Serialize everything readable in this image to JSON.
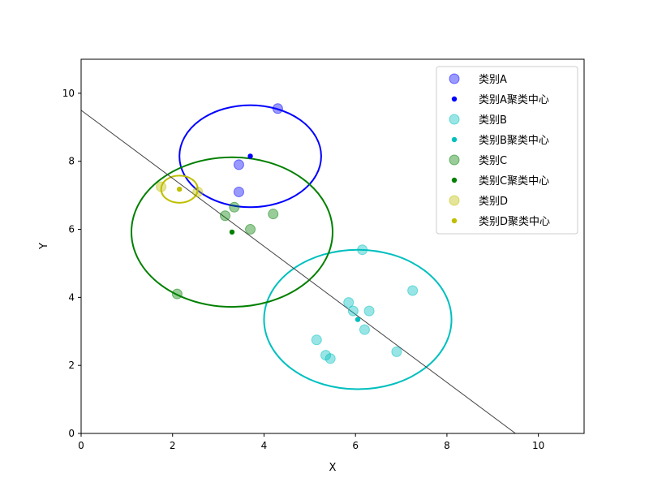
{
  "chart_data": {
    "type": "scatter",
    "xlabel": "X",
    "ylabel": "Y",
    "xlim": [
      0,
      11
    ],
    "ylim": [
      0,
      11
    ],
    "xticks": [
      "0",
      "2",
      "4",
      "6",
      "8",
      "10"
    ],
    "yticks": [
      "0",
      "2",
      "4",
      "6",
      "8",
      "10"
    ],
    "grid": false,
    "legend_position": "top-right",
    "series": [
      {
        "name": "类别A",
        "color": "#0000ff",
        "points": [
          [
            3.45,
            7.9
          ],
          [
            3.45,
            7.1
          ],
          [
            4.3,
            9.55
          ]
        ],
        "center": [
          3.7,
          8.15
        ],
        "center_label": "类别A聚类中心",
        "ellipse": {
          "rx": 1.55,
          "ry": 1.5
        }
      },
      {
        "name": "类别B",
        "color": "#00bfbf",
        "points": [
          [
            6.15,
            5.4
          ],
          [
            7.25,
            4.2
          ],
          [
            5.85,
            3.85
          ],
          [
            5.95,
            3.6
          ],
          [
            6.3,
            3.6
          ],
          [
            6.2,
            3.05
          ],
          [
            5.15,
            2.75
          ],
          [
            5.35,
            2.3
          ],
          [
            5.45,
            2.2
          ],
          [
            6.9,
            2.4
          ]
        ],
        "center": [
          6.05,
          3.35
        ],
        "center_label": "类别B聚类中心",
        "ellipse": {
          "rx": 2.05,
          "ry": 2.05
        }
      },
      {
        "name": "类别C",
        "color": "#008000",
        "points": [
          [
            3.35,
            6.65
          ],
          [
            3.15,
            6.4
          ],
          [
            3.7,
            6.0
          ],
          [
            4.2,
            6.45
          ],
          [
            2.1,
            4.1
          ]
        ],
        "center": [
          3.3,
          5.92
        ],
        "center_label": "类别C聚类中心",
        "ellipse": {
          "rx": 2.2,
          "ry": 2.2
        }
      },
      {
        "name": "类别D",
        "color": "#bfbf00",
        "points": [
          [
            1.75,
            7.25
          ],
          [
            2.55,
            7.1
          ]
        ],
        "center": [
          2.15,
          7.18
        ],
        "center_label": "类别D聚类中心",
        "ellipse": {
          "rx": 0.4,
          "ry": 0.4
        }
      }
    ],
    "line": {
      "points": [
        [
          0,
          9.5
        ],
        [
          9.5,
          0
        ]
      ],
      "color": "#444444"
    }
  }
}
